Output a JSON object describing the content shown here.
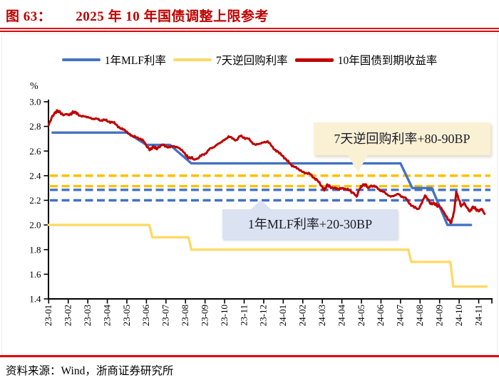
{
  "figure": {
    "label": "图 63：",
    "title": "2025 年 10 年国债调整上限参考",
    "source": "资料来源：Wind，浙商证券研究所"
  },
  "colors": {
    "title_red": "#c00000",
    "rule_red": "#e60000",
    "mlf_blue": "#4472C4",
    "repo_yellow": "#FFD966",
    "dashed_gold": "#FFC000",
    "yield_red": "#C00000",
    "callout_cream": "#faf1d4",
    "callout_blue": "#dbe2f1"
  },
  "chart_data": {
    "type": "line",
    "title": "2025 年 10 年国债调整上限参考",
    "ylabel": "%",
    "ylim": [
      1.4,
      3.0
    ],
    "yticks": [
      "3.0",
      "2.8",
      "2.6",
      "2.4",
      "2.2",
      "2.0",
      "1.8",
      "1.6",
      "1.4"
    ],
    "xticklabels": [
      "23-01",
      "23-02",
      "23-03",
      "23-04",
      "23-05",
      "23-06",
      "23-07",
      "23-08",
      "23-09",
      "23-10",
      "23-11",
      "23-12",
      "24-01",
      "24-02",
      "24-03",
      "24-04",
      "24-05",
      "24-06",
      "24-07",
      "24-08",
      "24-09",
      "24-10",
      "24-11"
    ],
    "legend": [
      "1年MLF利率",
      "7天逆回购利率",
      "10年国债到期收益率"
    ],
    "legend_position": "top",
    "grid": false,
    "series": [
      {
        "name": "1年MLF利率",
        "color": "#4472C4",
        "style": "solid",
        "points": [
          [
            0.2,
            2.75
          ],
          [
            4.0,
            2.75
          ],
          [
            5.0,
            2.65
          ],
          [
            6.2,
            2.65
          ],
          [
            7.3,
            2.5
          ],
          [
            18.0,
            2.5
          ],
          [
            18.6,
            2.3
          ],
          [
            19.6,
            2.3
          ],
          [
            20.4,
            2.0
          ],
          [
            21.6,
            2.0
          ]
        ]
      },
      {
        "name": "7天逆回购利率",
        "color": "#FFD966",
        "style": "solid",
        "points": [
          [
            0,
            2.0
          ],
          [
            5.15,
            2.0
          ],
          [
            5.3,
            1.9
          ],
          [
            7.15,
            1.9
          ],
          [
            7.3,
            1.8
          ],
          [
            18.4,
            1.8
          ],
          [
            18.55,
            1.7
          ],
          [
            20.55,
            1.7
          ],
          [
            20.7,
            1.5
          ],
          [
            22.4,
            1.5
          ]
        ]
      },
      {
        "name": "10年国债到期收益率",
        "color": "#C00000",
        "style": "solid",
        "points": [
          [
            0,
            2.81
          ],
          [
            0.15,
            2.87
          ],
          [
            0.3,
            2.91
          ],
          [
            0.45,
            2.93
          ],
          [
            0.6,
            2.91
          ],
          [
            0.75,
            2.89
          ],
          [
            0.9,
            2.9
          ],
          [
            1.05,
            2.89
          ],
          [
            1.2,
            2.91
          ],
          [
            1.35,
            2.92
          ],
          [
            1.5,
            2.9
          ],
          [
            1.7,
            2.88
          ],
          [
            1.9,
            2.88
          ],
          [
            2.1,
            2.87
          ],
          [
            2.3,
            2.86
          ],
          [
            2.5,
            2.86
          ],
          [
            2.7,
            2.85
          ],
          [
            2.9,
            2.85
          ],
          [
            3.1,
            2.84
          ],
          [
            3.3,
            2.83
          ],
          [
            3.5,
            2.81
          ],
          [
            3.7,
            2.78
          ],
          [
            3.9,
            2.77
          ],
          [
            4.1,
            2.74
          ],
          [
            4.3,
            2.72
          ],
          [
            4.5,
            2.71
          ],
          [
            4.7,
            2.7
          ],
          [
            4.9,
            2.67
          ],
          [
            5.05,
            2.63
          ],
          [
            5.2,
            2.61
          ],
          [
            5.35,
            2.64
          ],
          [
            5.5,
            2.62
          ],
          [
            5.65,
            2.63
          ],
          [
            5.8,
            2.65
          ],
          [
            6.0,
            2.64
          ],
          [
            6.2,
            2.63
          ],
          [
            6.4,
            2.64
          ],
          [
            6.6,
            2.63
          ],
          [
            6.8,
            2.61
          ],
          [
            7.0,
            2.57
          ],
          [
            7.15,
            2.54
          ],
          [
            7.3,
            2.55
          ],
          [
            7.45,
            2.53
          ],
          [
            7.6,
            2.54
          ],
          [
            7.8,
            2.56
          ],
          [
            8.0,
            2.58
          ],
          [
            8.2,
            2.61
          ],
          [
            8.4,
            2.63
          ],
          [
            8.6,
            2.65
          ],
          [
            8.8,
            2.67
          ],
          [
            9.0,
            2.69
          ],
          [
            9.2,
            2.72
          ],
          [
            9.4,
            2.7
          ],
          [
            9.6,
            2.69
          ],
          [
            9.8,
            2.72
          ],
          [
            10.0,
            2.71
          ],
          [
            10.2,
            2.7
          ],
          [
            10.4,
            2.67
          ],
          [
            10.6,
            2.65
          ],
          [
            10.8,
            2.66
          ],
          [
            11.0,
            2.67
          ],
          [
            11.2,
            2.68
          ],
          [
            11.4,
            2.64
          ],
          [
            11.6,
            2.61
          ],
          [
            11.8,
            2.58
          ],
          [
            12.0,
            2.56
          ],
          [
            12.2,
            2.52
          ],
          [
            12.4,
            2.49
          ],
          [
            12.6,
            2.47
          ],
          [
            12.8,
            2.45
          ],
          [
            13.0,
            2.43
          ],
          [
            13.2,
            2.42
          ],
          [
            13.4,
            2.41
          ],
          [
            13.6,
            2.38
          ],
          [
            13.8,
            2.35
          ],
          [
            14.0,
            2.31
          ],
          [
            14.1,
            2.28
          ],
          [
            14.25,
            2.33
          ],
          [
            14.4,
            2.31
          ],
          [
            14.6,
            2.3
          ],
          [
            14.8,
            2.29
          ],
          [
            15.0,
            2.3
          ],
          [
            15.2,
            2.29
          ],
          [
            15.4,
            2.28
          ],
          [
            15.6,
            2.26
          ],
          [
            15.75,
            2.23
          ],
          [
            15.9,
            2.29
          ],
          [
            16.05,
            2.32
          ],
          [
            16.2,
            2.33
          ],
          [
            16.35,
            2.3
          ],
          [
            16.5,
            2.32
          ],
          [
            16.7,
            2.31
          ],
          [
            16.9,
            2.29
          ],
          [
            17.1,
            2.27
          ],
          [
            17.3,
            2.25
          ],
          [
            17.5,
            2.23
          ],
          [
            17.7,
            2.24
          ],
          [
            17.9,
            2.25
          ],
          [
            18.1,
            2.23
          ],
          [
            18.3,
            2.21
          ],
          [
            18.5,
            2.17
          ],
          [
            18.7,
            2.14
          ],
          [
            18.9,
            2.13
          ],
          [
            19.1,
            2.18
          ],
          [
            19.25,
            2.24
          ],
          [
            19.4,
            2.21
          ],
          [
            19.55,
            2.17
          ],
          [
            19.7,
            2.18
          ],
          [
            19.85,
            2.16
          ],
          [
            20.0,
            2.15
          ],
          [
            20.15,
            2.12
          ],
          [
            20.3,
            2.08
          ],
          [
            20.45,
            2.04
          ],
          [
            20.6,
            2.02
          ],
          [
            20.75,
            2.12
          ],
          [
            20.85,
            2.27
          ],
          [
            21.0,
            2.2
          ],
          [
            21.1,
            2.15
          ],
          [
            21.25,
            2.18
          ],
          [
            21.4,
            2.14
          ],
          [
            21.55,
            2.11
          ],
          [
            21.7,
            2.15
          ],
          [
            21.85,
            2.13
          ],
          [
            22.0,
            2.11
          ],
          [
            22.15,
            2.13
          ],
          [
            22.3,
            2.09
          ]
        ]
      }
    ],
    "reference_lines": [
      {
        "label": "7天逆回购利率+90BP",
        "value": 2.4,
        "color": "#FFC000",
        "style": "dashed"
      },
      {
        "label": "7天逆回购利率+80BP",
        "value": 2.3,
        "color": "#FFC000",
        "style": "dashed"
      },
      {
        "label": "1年MLF利率+30BP",
        "value": 2.3,
        "color": "#4472C4",
        "style": "dashed"
      },
      {
        "label": "1年MLF利率+20BP",
        "value": 2.2,
        "color": "#4472C4",
        "style": "dashed"
      }
    ],
    "annotations": [
      {
        "text": "7天逆回购利率+80-90BP",
        "target_value": 2.4,
        "bg": "#faf1d4"
      },
      {
        "text": "1年MLF利率+20-30BP",
        "target_value": 2.2,
        "bg": "#dbe2f1"
      }
    ]
  }
}
